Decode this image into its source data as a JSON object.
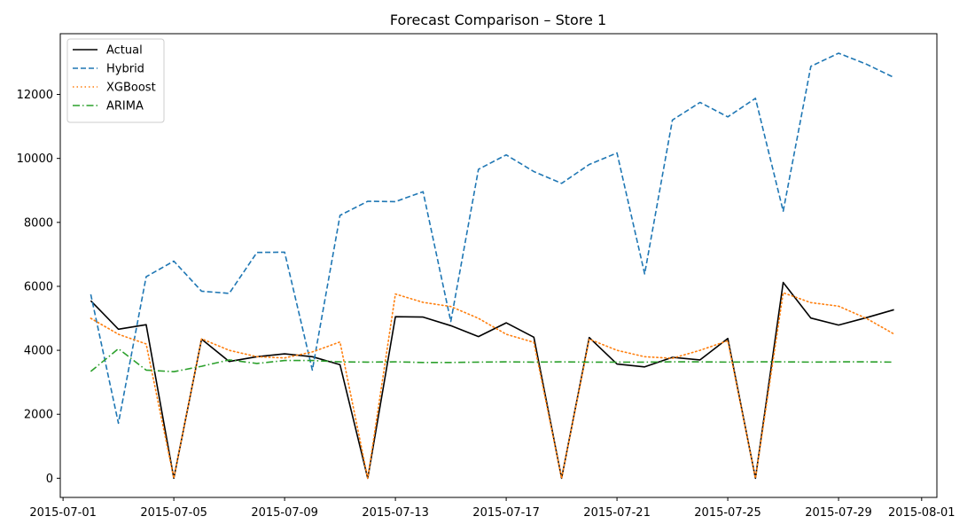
{
  "chart_data": {
    "type": "line",
    "title": "Forecast Comparison – Store 1",
    "xlabel": "",
    "ylabel": "",
    "x": [
      "2015-07-02",
      "2015-07-03",
      "2015-07-04",
      "2015-07-05",
      "2015-07-06",
      "2015-07-07",
      "2015-07-08",
      "2015-07-09",
      "2015-07-10",
      "2015-07-11",
      "2015-07-12",
      "2015-07-13",
      "2015-07-14",
      "2015-07-15",
      "2015-07-16",
      "2015-07-17",
      "2015-07-18",
      "2015-07-19",
      "2015-07-20",
      "2015-07-21",
      "2015-07-22",
      "2015-07-23",
      "2015-07-24",
      "2015-07-25",
      "2015-07-26",
      "2015-07-27",
      "2015-07-28",
      "2015-07-29",
      "2015-07-30",
      "2015-07-31"
    ],
    "xlim": [
      "2015-06-30",
      "2015-08-01"
    ],
    "ylim": [
      -600,
      13900
    ],
    "x_ticks": [
      "2015-07-01",
      "2015-07-05",
      "2015-07-09",
      "2015-07-13",
      "2015-07-17",
      "2015-07-21",
      "2015-07-25",
      "2015-07-29",
      "2015-08-01"
    ],
    "y_ticks": [
      0,
      2000,
      4000,
      6000,
      8000,
      10000,
      12000
    ],
    "grid": false,
    "legend_position": "top-left",
    "series": [
      {
        "name": "Actual",
        "color": "#000000",
        "style": "solid",
        "values": [
          5550,
          4660,
          4800,
          0,
          4350,
          3650,
          3800,
          3890,
          3800,
          3550,
          0,
          5050,
          5040,
          4770,
          4430,
          4860,
          4410,
          0,
          4400,
          3570,
          3480,
          3780,
          3700,
          4370,
          0,
          6120,
          5010,
          4790,
          5020,
          5270
        ]
      },
      {
        "name": "Hybrid",
        "color": "#1f77b4",
        "style": "dashed",
        "values": [
          5750,
          1720,
          6300,
          6790,
          5850,
          5780,
          7060,
          7070,
          3380,
          8220,
          8660,
          8650,
          8960,
          4900,
          9660,
          10110,
          9590,
          9220,
          9810,
          10170,
          6390,
          11200,
          11750,
          11300,
          11880,
          8350,
          12880,
          13290,
          12950,
          12530
        ]
      },
      {
        "name": "XGBoost",
        "color": "#ff7f0e",
        "style": "dotted",
        "values": [
          5000,
          4500,
          4200,
          0,
          4360,
          4000,
          3800,
          3760,
          3950,
          4260,
          0,
          5760,
          5500,
          5370,
          5000,
          4500,
          4250,
          0,
          4350,
          4000,
          3800,
          3750,
          4000,
          4300,
          0,
          5800,
          5490,
          5380,
          5000,
          4510
        ]
      },
      {
        "name": "ARIMA",
        "color": "#2ca02c",
        "style": "dashdot",
        "values": [
          3340,
          4050,
          3380,
          3330,
          3500,
          3700,
          3590,
          3680,
          3680,
          3640,
          3630,
          3640,
          3620,
          3620,
          3630,
          3640,
          3630,
          3640,
          3630,
          3630,
          3630,
          3640,
          3640,
          3630,
          3640,
          3640,
          3630,
          3640,
          3640,
          3630
        ]
      }
    ]
  }
}
